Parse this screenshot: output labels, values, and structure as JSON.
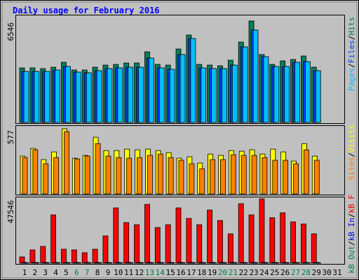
{
  "title": "Daily usage for February 2016",
  "categories": [
    "1",
    "2",
    "3",
    "4",
    "5",
    "6",
    "7",
    "8",
    "9",
    "10",
    "11",
    "12",
    "13",
    "14",
    "15",
    "16",
    "17",
    "18",
    "19",
    "20",
    "21",
    "22",
    "23",
    "24",
    "25",
    "26",
    "27",
    "28",
    "29",
    "30",
    "31"
  ],
  "highlighted_categories": [
    5,
    6,
    12,
    13,
    19,
    20,
    26,
    27
  ],
  "highlight_color": "#008040",
  "legend_separator": "/",
  "chart_data": [
    {
      "type": "bar",
      "ylim": [
        0,
        6546
      ],
      "yticks": [
        6546
      ],
      "series": [
        {
          "name": "Hits",
          "color": "#00805c",
          "values": [
            3521,
            3521,
            3476,
            3566,
            3882,
            3386,
            3386,
            3566,
            3702,
            3747,
            3837,
            3837,
            4559,
            3747,
            3702,
            4740,
            5643,
            3747,
            3702,
            3656,
            4017,
            5191,
            6546,
            4379,
            3747,
            3972,
            4063,
            4288,
            3566,
            null,
            null
          ]
        },
        {
          "name": "Files",
          "color": "#0040ff",
          "values": [
            3295,
            3295,
            3295,
            3386,
            3611,
            3250,
            3205,
            3340,
            3476,
            3521,
            3566,
            3566,
            4153,
            3521,
            3431,
            4379,
            5417,
            3521,
            3476,
            3476,
            3701,
            4875,
            5958,
            4243,
            3611,
            3611,
            3882,
            3927,
            3340,
            null,
            null
          ]
        },
        {
          "name": "Pages",
          "color": "#00c0ff",
          "values": [
            3295,
            3295,
            3295,
            3386,
            3611,
            3250,
            3205,
            3340,
            3476,
            3521,
            3566,
            3566,
            4153,
            3521,
            3431,
            4379,
            5417,
            3521,
            3476,
            3476,
            3701,
            4875,
            5958,
            4243,
            3611,
            3611,
            3882,
            3927,
            3340,
            null,
            null
          ]
        }
      ]
    },
    {
      "type": "bar",
      "ylim": [
        0,
        577
      ],
      "yticks": [
        577
      ],
      "series": [
        {
          "name": "Visits",
          "color": "#ffff00",
          "values": [
            335,
            403,
            304,
            372,
            577,
            316,
            341,
            502,
            384,
            384,
            397,
            391,
            397,
            384,
            366,
            316,
            329,
            273,
            353,
            341,
            384,
            378,
            391,
            353,
            397,
            372,
            291,
            446,
            335,
            null,
            null
          ]
        },
        {
          "name": "Sites",
          "color": "#ff8000",
          "values": [
            322,
            391,
            267,
            322,
            552,
            310,
            335,
            446,
            335,
            322,
            316,
            322,
            341,
            353,
            322,
            298,
            267,
            223,
            304,
            304,
            347,
            341,
            341,
            322,
            298,
            298,
            267,
            391,
            298,
            null,
            null
          ]
        }
      ]
    },
    {
      "type": "bar",
      "ylim": [
        0,
        47546
      ],
      "yticks": [
        47546
      ],
      "series": [
        {
          "name": "kB F",
          "color": "#ff0000",
          "values": [
            4651,
            9819,
            12403,
            35659,
            10336,
            9819,
            7752,
            10336,
            20155,
            40827,
            29974,
            28424,
            43411,
            26357,
            28424,
            40827,
            33075,
            28424,
            39277,
            31525,
            21706,
            43928,
            35659,
            47546,
            33592,
            37210,
            30491,
            28941,
            21706,
            null,
            null
          ]
        },
        {
          "name": "kB In",
          "color": "#0000ff",
          "values": [
            600,
            600,
            600,
            600,
            600,
            600,
            600,
            600,
            600,
            600,
            600,
            600,
            600,
            600,
            600,
            600,
            600,
            600,
            600,
            600,
            600,
            600,
            600,
            600,
            600,
            600,
            600,
            600,
            600,
            null,
            null
          ]
        },
        {
          "name": "kB Out",
          "color": "#008040",
          "values": [
            400,
            400,
            400,
            400,
            400,
            400,
            400,
            400,
            400,
            400,
            400,
            400,
            400,
            400,
            400,
            400,
            400,
            400,
            400,
            400,
            400,
            400,
            400,
            400,
            400,
            400,
            400,
            400,
            400,
            null,
            null
          ]
        }
      ]
    }
  ]
}
